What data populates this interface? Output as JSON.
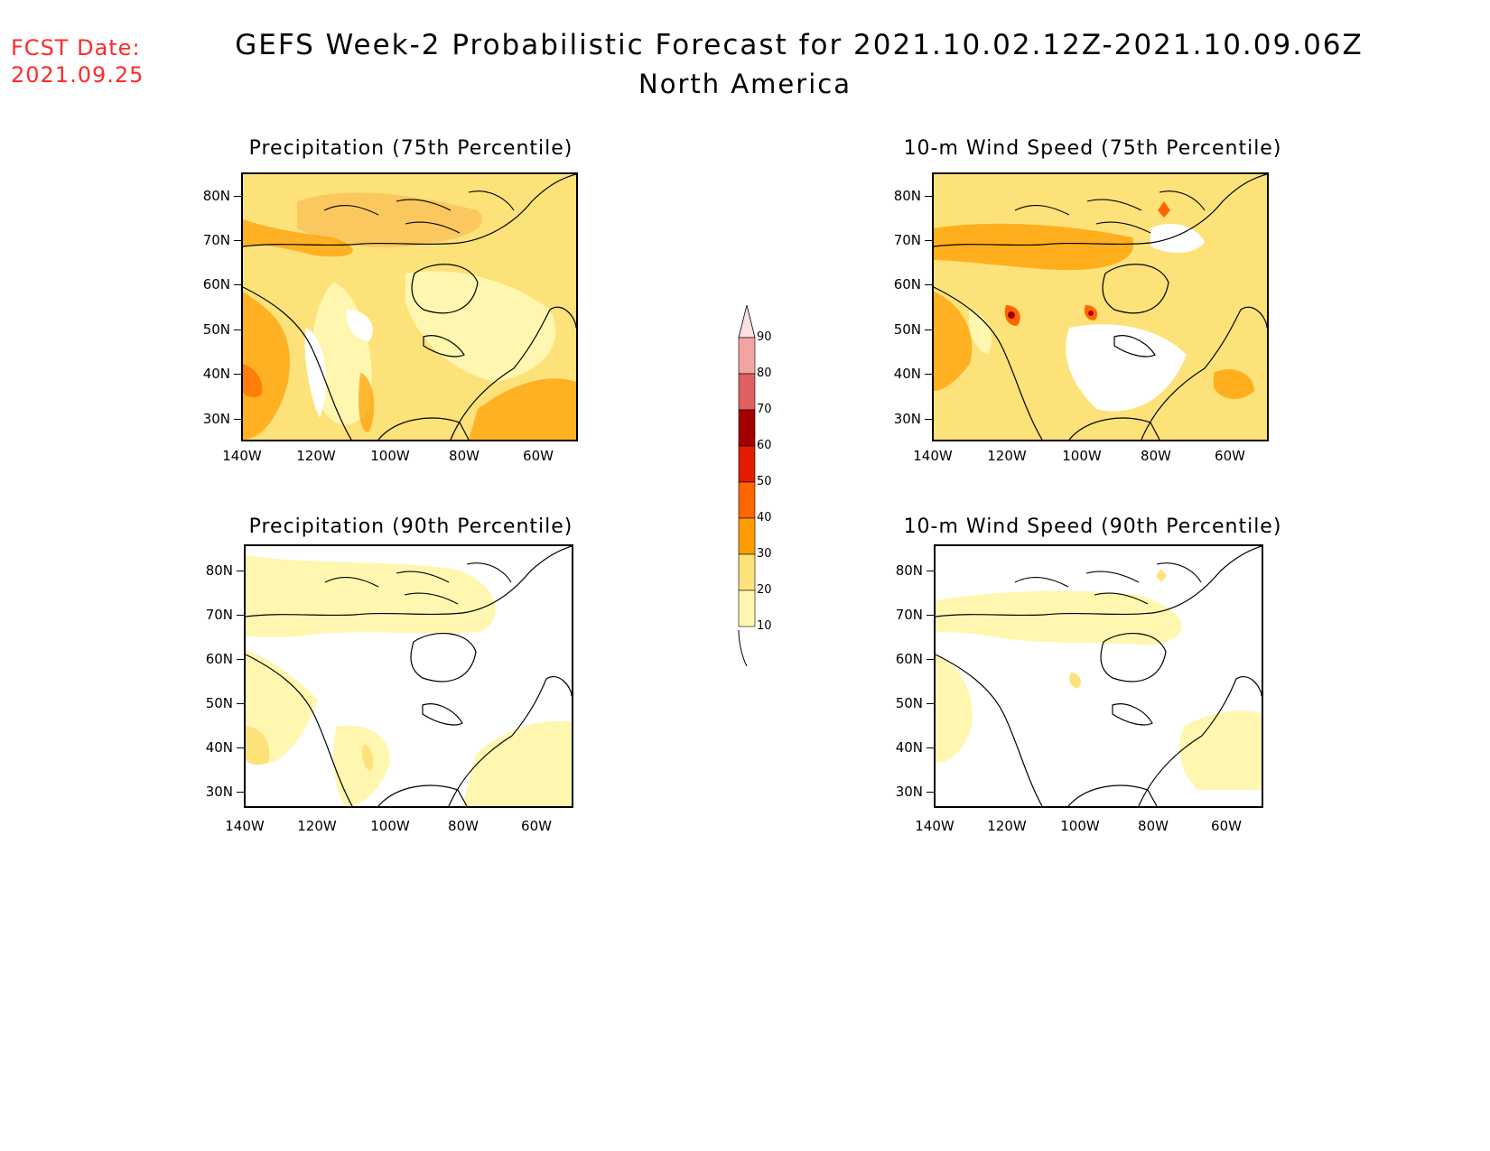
{
  "header": {
    "fcst_label": "FCST Date:",
    "fcst_date": "2021.09.25",
    "title": "GEFS Week-2 Probabilistic Forecast for 2021.10.02.12Z-2021.10.09.06Z",
    "subtitle": "North America"
  },
  "panels": [
    {
      "title": "Precipitation (75th Percentile)"
    },
    {
      "title": "10-m Wind Speed (75th Percentile)"
    },
    {
      "title": "Precipitation (90th Percentile)"
    },
    {
      "title": "10-m Wind Speed (90th Percentile)"
    }
  ],
  "axes": {
    "lat_labels": [
      "80N",
      "70N",
      "60N",
      "50N",
      "40N",
      "30N"
    ],
    "lon_labels": [
      "140W",
      "120W",
      "100W",
      "80W",
      "60W"
    ]
  },
  "colorbar": {
    "levels": [
      "90",
      "80",
      "70",
      "60",
      "50",
      "40",
      "30",
      "20",
      "10"
    ],
    "colors": [
      "#fde0e0",
      "#f4a3a3",
      "#e06060",
      "#a50000",
      "#e51c00",
      "#ff6600",
      "#ff9d00",
      "#fde27a",
      "#fff7b0"
    ]
  },
  "chart_data": {
    "type": "heatmap",
    "title": "GEFS Week-2 Probabilistic Forecast for 2021.10.02.12Z-2021.10.09.06Z",
    "region": "North America",
    "variables": [
      "Precipitation (75th Percentile)",
      "10-m Wind Speed (75th Percentile)",
      "Precipitation (90th Percentile)",
      "10-m Wind Speed (90th Percentile)"
    ],
    "lon_range": [
      "140W",
      "50W"
    ],
    "lat_range": [
      "25N",
      "85N"
    ],
    "contour_levels": [
      10,
      20,
      30,
      40,
      50,
      60,
      70,
      80,
      90
    ]
  }
}
